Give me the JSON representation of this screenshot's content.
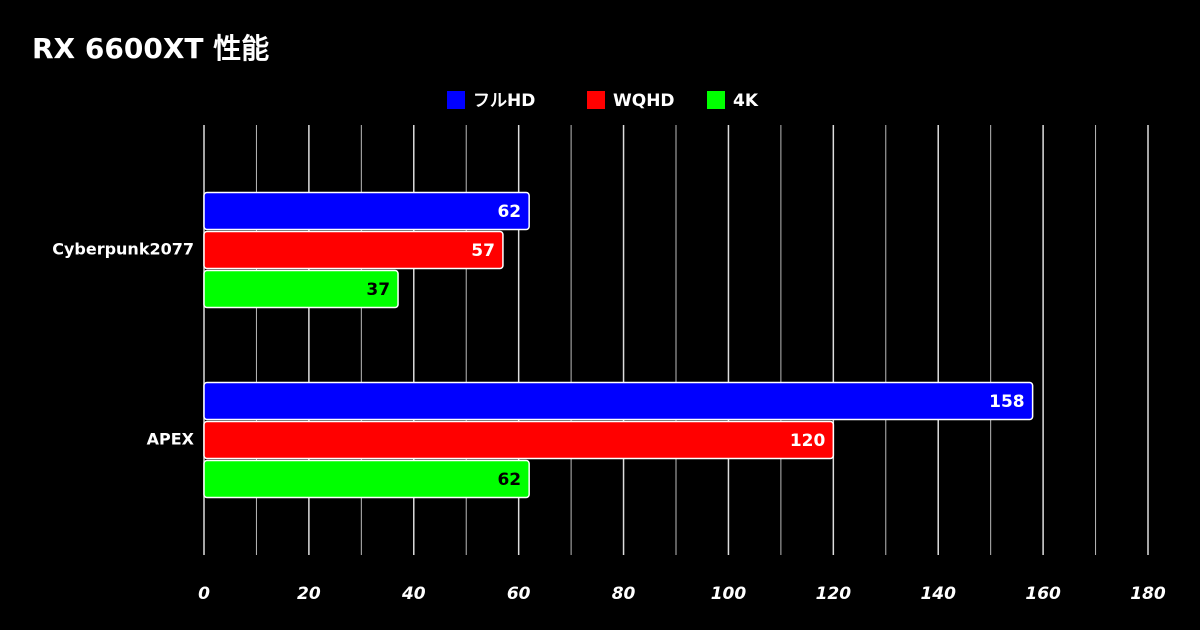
{
  "chart_data": {
    "type": "hbar",
    "title": "RX 6600XT 性能",
    "categories": [
      "Cyberpunk2077",
      "APEX"
    ],
    "series": [
      {
        "name": "フルHD",
        "color": "#0000ff",
        "label_color": "#ffffff",
        "values": [
          62,
          158
        ]
      },
      {
        "name": "WQHD",
        "color": "#ff0000",
        "label_color": "#ffffff",
        "values": [
          57,
          120
        ]
      },
      {
        "name": "4K",
        "color": "#00ff00",
        "label_color": "#000000",
        "values": [
          37,
          62
        ]
      }
    ],
    "xlim": [
      0,
      180
    ],
    "xticks": [
      0,
      20,
      40,
      60,
      80,
      100,
      120,
      140,
      160,
      180
    ],
    "minor_xticks": [
      10,
      30,
      50,
      70,
      90,
      110,
      130,
      150,
      170
    ],
    "grid": true,
    "legend": "top"
  }
}
